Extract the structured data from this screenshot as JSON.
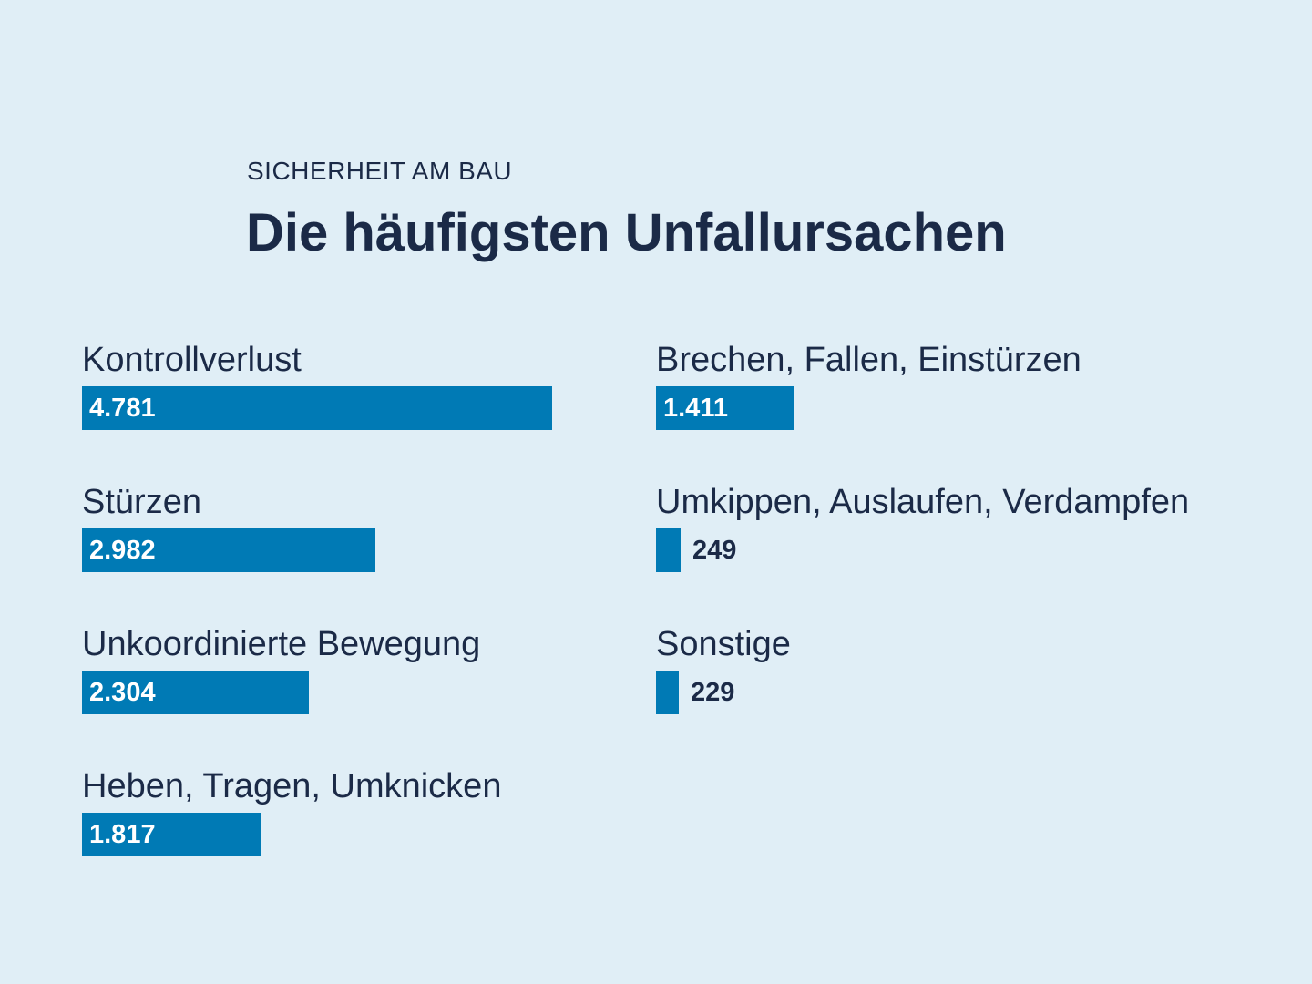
{
  "chart_data": {
    "type": "bar",
    "kicker": "SICHERHEIT AM BAU",
    "title": "Die häufigsten Unfallursachen",
    "categories": [
      "Kontrollverlust",
      "Stürzen",
      "Unkoordinierte Bewegung",
      "Heben, Tragen, Umknicken",
      "Brechen, Fallen, Einstürzen",
      "Umkippen, Auslaufen, Verdampfen",
      "Sonstige"
    ],
    "values": [
      4781,
      2982,
      2304,
      1817,
      1411,
      249,
      229
    ],
    "value_labels": [
      "4.781",
      "2.982",
      "2.304",
      "1.817",
      "1.411",
      "249",
      "229"
    ],
    "xlim": [
      0,
      4781
    ],
    "grid": false,
    "legend": "none",
    "bar_color": "#007ab5"
  }
}
